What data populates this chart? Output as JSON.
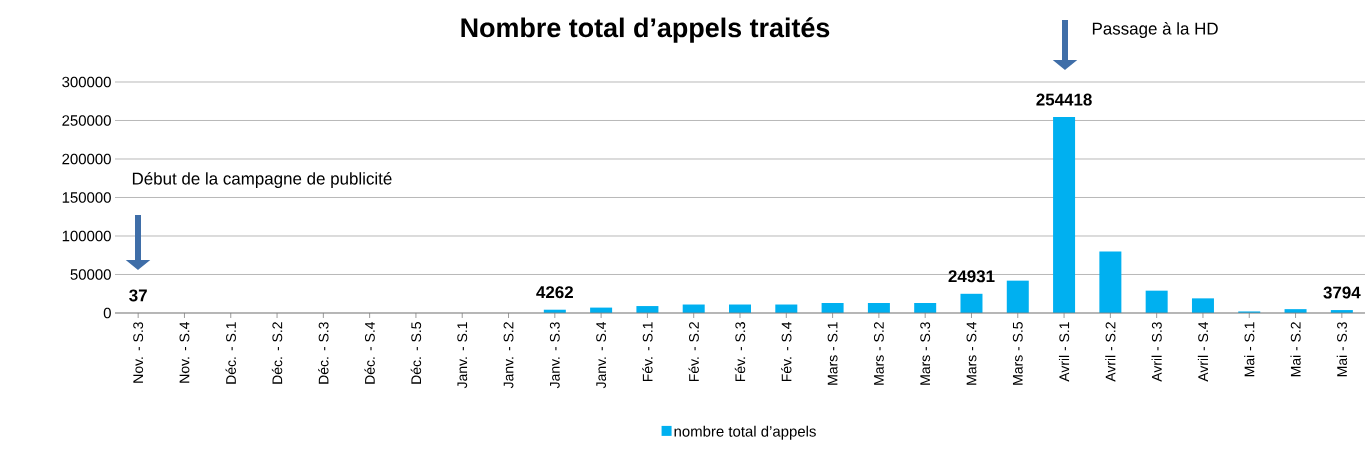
{
  "chart_data": {
    "type": "bar",
    "title": "Nombre total d’appels traités",
    "categories": [
      "Nov. - S.3",
      "Nov. - S.4",
      "Déc. - S.1",
      "Déc. - S.2",
      "Déc. - S.3",
      "Déc. - S.4",
      "Déc. - S.5",
      "Janv. - S.1",
      "Janv. - S.2",
      "Janv. - S.3",
      "Janv. - S.4",
      "Fév. - S.1",
      "Fév. - S.2",
      "Fév. - S.3",
      "Fév. - S.4",
      "Mars - S.1",
      "Mars - S.2",
      "Mars - S.3",
      "Mars - S.4",
      "Mars - S.5",
      "Avril - S.1",
      "Avril - S.2",
      "Avril - S.3",
      "Avril - S.4",
      "Mai - S.1",
      "Mai - S.2",
      "Mai - S.3"
    ],
    "series": [
      {
        "name": "nombre total d’appels",
        "color": "#00b0f0",
        "values": [
          37,
          0,
          0,
          0,
          0,
          0,
          0,
          0,
          0,
          4262,
          7000,
          9000,
          11000,
          11000,
          11000,
          13000,
          13000,
          13000,
          24931,
          42000,
          254418,
          80000,
          29000,
          19000,
          2000,
          5000,
          3794
        ],
        "value_labels": [
          "37",
          null,
          null,
          null,
          null,
          null,
          null,
          null,
          null,
          "4262",
          null,
          null,
          null,
          null,
          null,
          null,
          null,
          null,
          "24931",
          null,
          "254418",
          null,
          null,
          null,
          null,
          null,
          "3794"
        ]
      }
    ],
    "ylim": [
      0,
      300000
    ],
    "yticks": [
      0,
      50000,
      100000,
      150000,
      200000,
      250000,
      300000
    ],
    "grid": "y",
    "legend": "bottom",
    "annotations": [
      "Début de la campagne de publicité",
      "Passage à la HD"
    ]
  }
}
